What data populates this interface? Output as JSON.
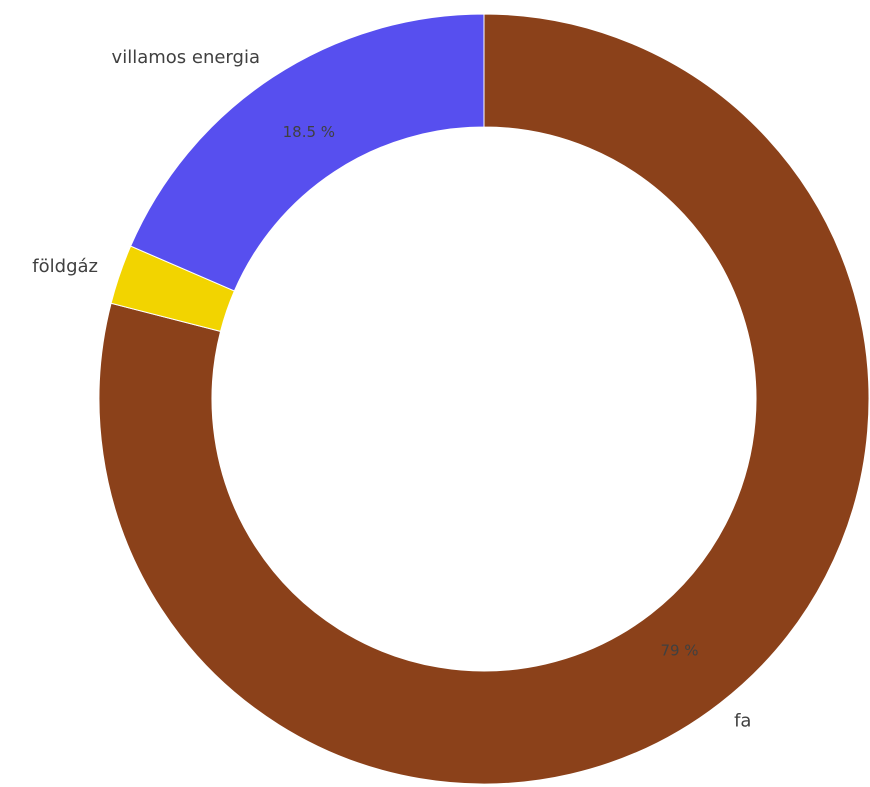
{
  "chart_data": {
    "type": "pie",
    "variant": "donut",
    "slices": [
      {
        "label": "fa",
        "value": 79,
        "value_label": "79 %",
        "color": "#8B411A",
        "show_value_label": true
      },
      {
        "label": "földgáz",
        "value": 2.5,
        "value_label": "",
        "color": "#F2D400",
        "show_value_label": false
      },
      {
        "label": "villamos energia",
        "value": 18.5,
        "value_label": "18.5 %",
        "color": "#574FEF",
        "show_value_label": true
      }
    ],
    "unit": "%",
    "start": "top",
    "direction": "clockwise"
  }
}
